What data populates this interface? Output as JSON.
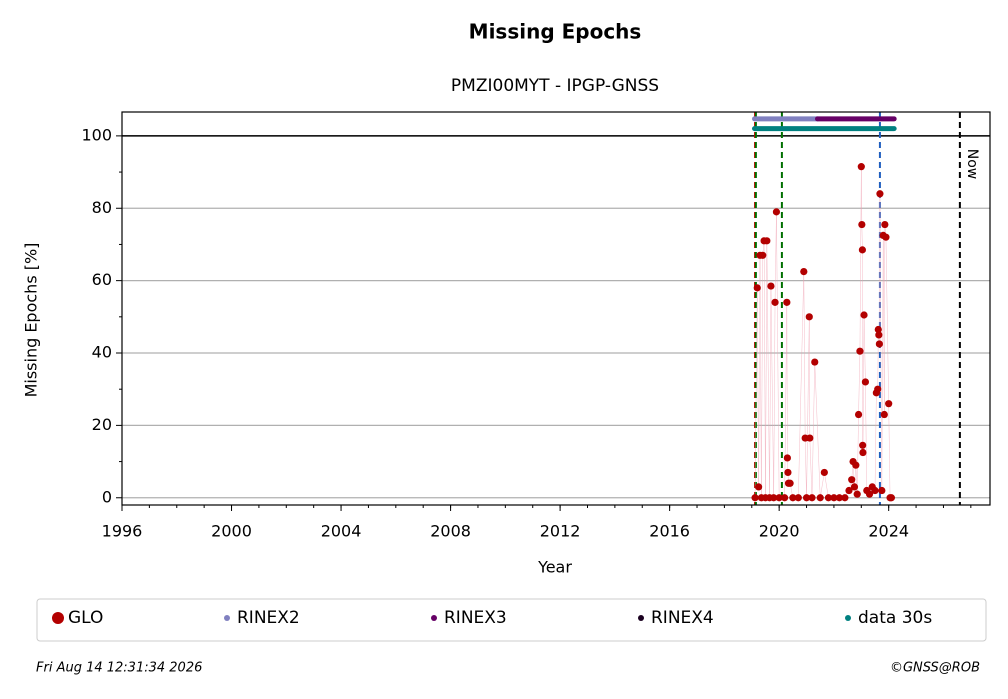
{
  "chart_data": {
    "type": "scatter",
    "title": "Missing Epochs",
    "subtitle": "PMZI00MYT - IPGP-GNSS",
    "xlabel": "Year",
    "ylabel": "Missing Epochs [%]",
    "xlim": [
      1996,
      2027.7
    ],
    "ylim": [
      -2,
      106.6
    ],
    "xticks": [
      1996,
      2000,
      2004,
      2008,
      2012,
      2016,
      2020,
      2024
    ],
    "yticks": [
      0,
      20,
      40,
      60,
      80,
      100
    ],
    "grid": true,
    "legend": "bottom",
    "hline": 100,
    "series": [
      {
        "name": "GLO",
        "color": "#b30000",
        "x": [
          2019.12,
          2019.2,
          2019.25,
          2019.3,
          2019.35,
          2019.4,
          2019.45,
          2019.5,
          2019.55,
          2019.65,
          2019.7,
          2019.8,
          2019.85,
          2019.9,
          2020.0,
          2020.2,
          2020.28,
          2020.3,
          2020.32,
          2020.34,
          2020.4,
          2020.5,
          2020.7,
          2020.9,
          2020.95,
          2021.0,
          2021.1,
          2021.12,
          2021.2,
          2021.3,
          2021.5,
          2021.65,
          2021.8,
          2022.0,
          2022.2,
          2022.4,
          2022.55,
          2022.65,
          2022.7,
          2022.75,
          2022.8,
          2022.85,
          2022.9,
          2022.95,
          2023.0,
          2023.02,
          2023.04,
          2023.05,
          2023.06,
          2023.1,
          2023.15,
          2023.2,
          2023.3,
          2023.4,
          2023.5,
          2023.55,
          2023.6,
          2023.62,
          2023.64,
          2023.66,
          2023.68,
          2023.75,
          2023.8,
          2023.84,
          2023.86,
          2023.9,
          2024.0,
          2024.05,
          2024.1
        ],
        "values": [
          0,
          58,
          3,
          67,
          0,
          67,
          71,
          0,
          71,
          0,
          58.5,
          0,
          54,
          79,
          0,
          0,
          54,
          11,
          7,
          4,
          4,
          0,
          0,
          62.5,
          16.5,
          0,
          50,
          16.5,
          0,
          37.5,
          0,
          7,
          0,
          0,
          0,
          0,
          2,
          5,
          10,
          3,
          9,
          1,
          23,
          40.5,
          91.5,
          75.5,
          68.5,
          14.5,
          12.5,
          50.5,
          32,
          2,
          1,
          3,
          2,
          29,
          30,
          46.5,
          45,
          42.5,
          84,
          2,
          72.5,
          23,
          75.5,
          72,
          26,
          0,
          0
        ]
      },
      {
        "name": "RINEX2",
        "color": "#8080c0",
        "x": [
          2019.1,
          2021.4
        ],
        "values": [
          104.7,
          104.7
        ]
      },
      {
        "name": "RINEX3",
        "color": "#660066",
        "x": [
          2021.4,
          2024.2
        ],
        "values": [
          104.7,
          104.7
        ]
      },
      {
        "name": "RINEX4",
        "color": "#1a0020",
        "x": [],
        "values": []
      },
      {
        "name": "data 30s",
        "color": "#008080",
        "x": [
          2019.1,
          2024.2
        ],
        "values": [
          102,
          102
        ]
      }
    ],
    "vlines": [
      {
        "x": 2019.12,
        "color": "#cc0000"
      },
      {
        "x": 2019.15,
        "color": "#007000"
      },
      {
        "x": 2020.1,
        "color": "#007000"
      },
      {
        "x": 2023.68,
        "color": "#1f5fbf"
      },
      {
        "x": 2026.6,
        "color": "#000000",
        "label": "Now"
      }
    ],
    "footer_date": "Fri Aug 14 12:31:34 2026",
    "footer_credit": "©GNSS@ROB"
  }
}
